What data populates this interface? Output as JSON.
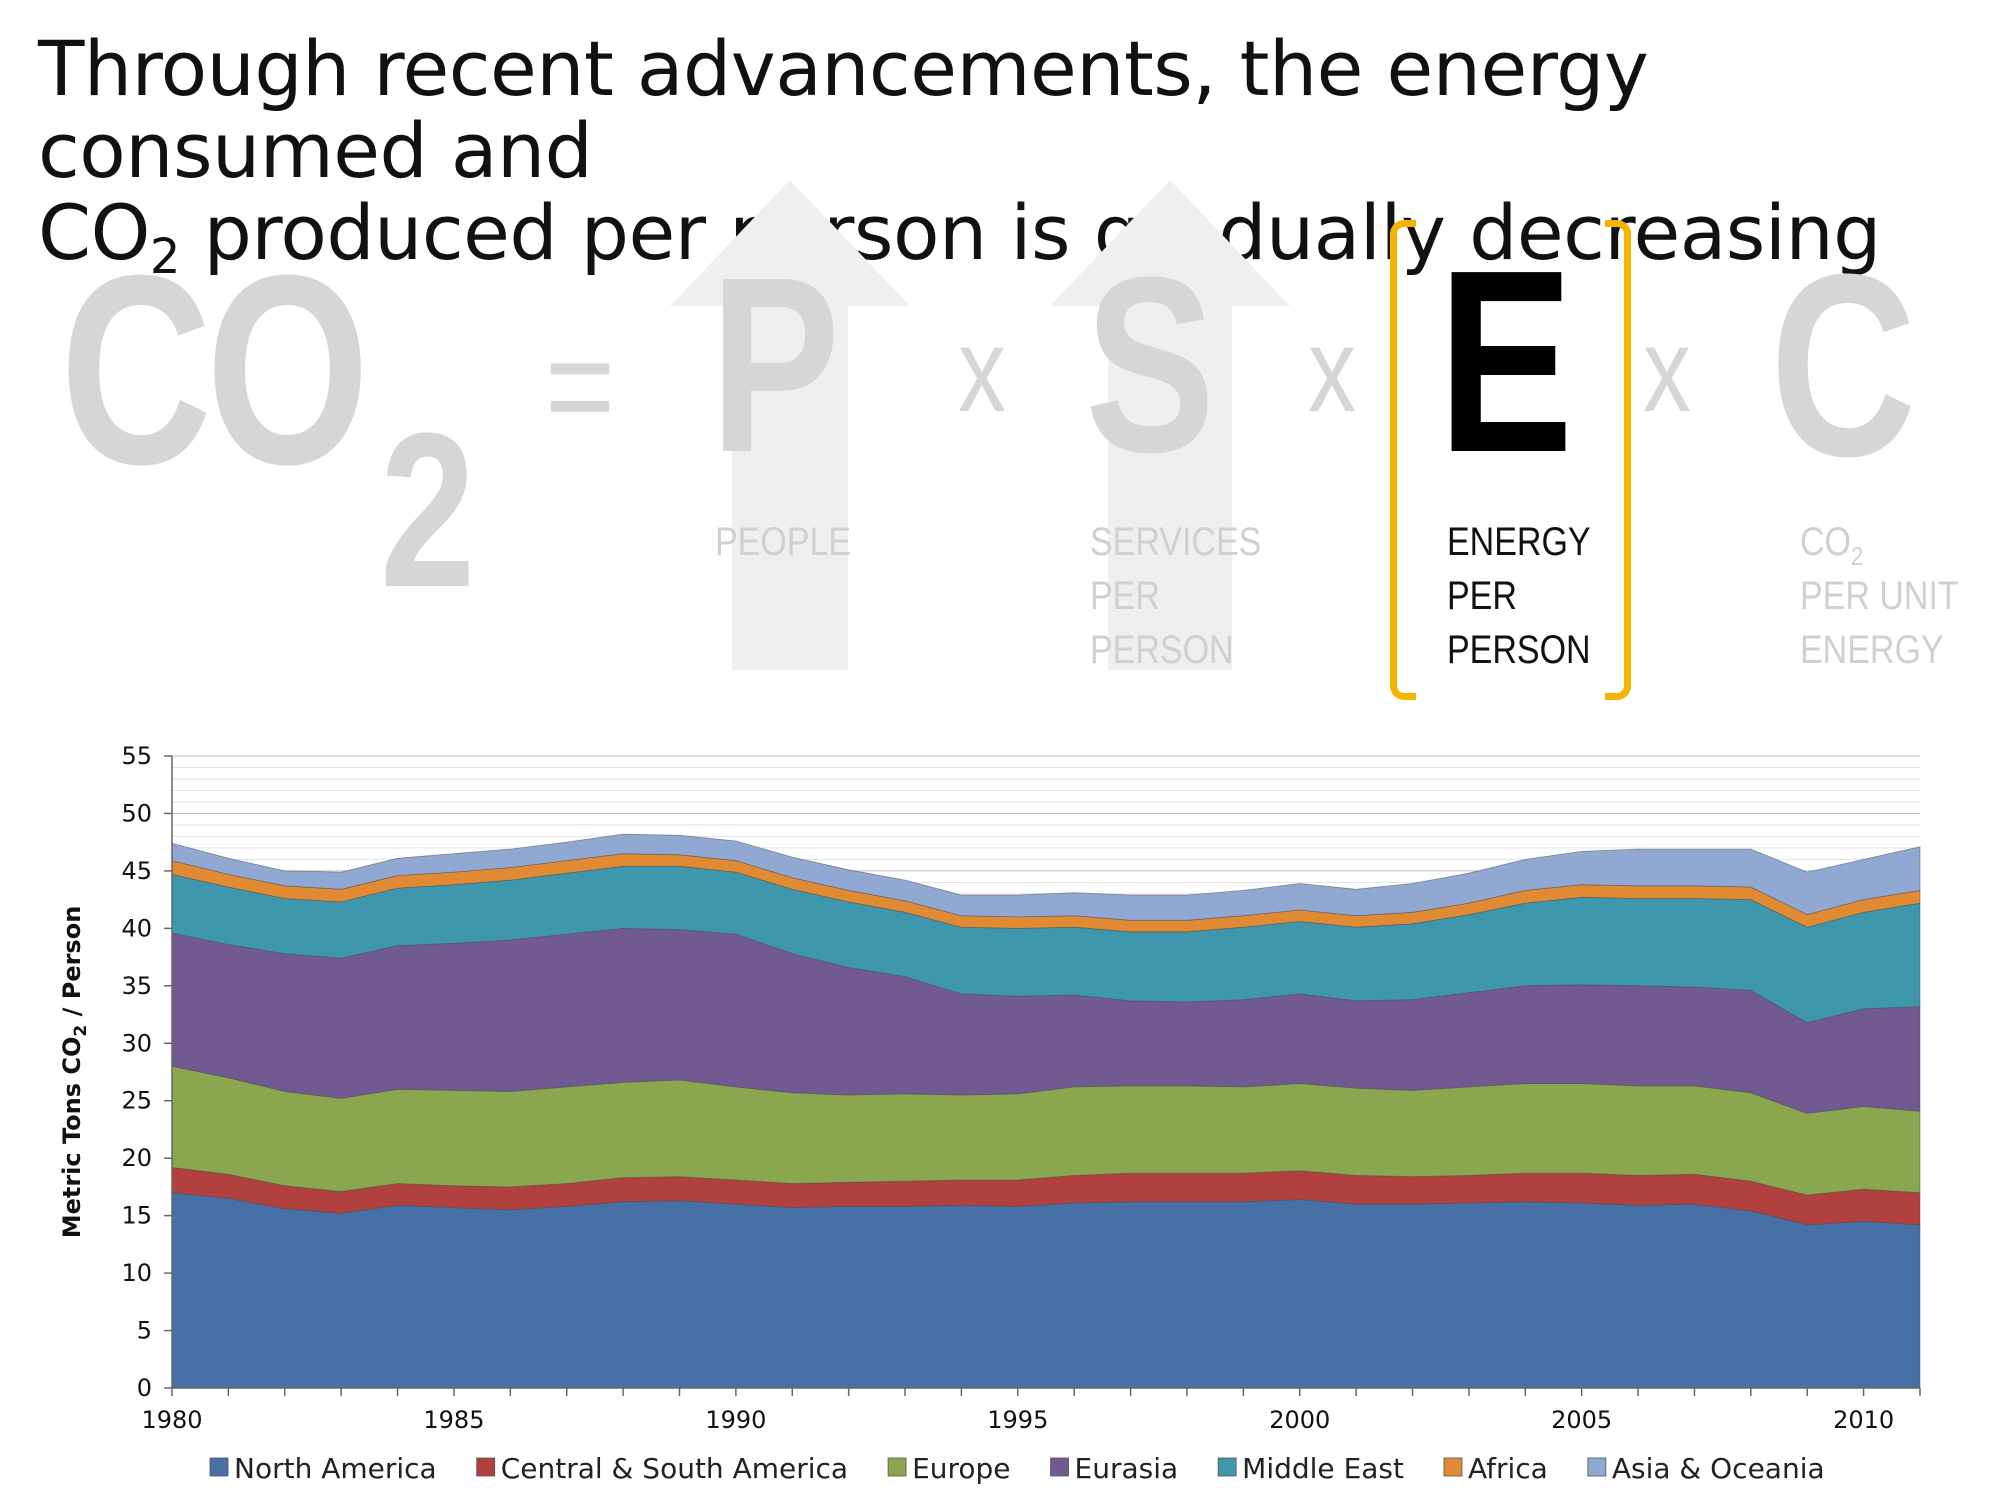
{
  "headline": {
    "line1": "Through recent advancements, the energy consumed and",
    "line2_pre": "CO",
    "line2_sub": "2",
    "line2_post": " produced per person is gradually decreasing"
  },
  "equation": {
    "co2_main": "CO",
    "co2_sub": "2",
    "equals": "=",
    "times": "x",
    "p_letter": "P",
    "p_label": [
      "PEOPLE"
    ],
    "s_letter": "S",
    "s_label": [
      "SERVICES",
      "PER",
      "PERSON"
    ],
    "e_letter": "E",
    "e_label": [
      "ENERGY",
      "PER",
      "PERSON"
    ],
    "c_letter": "C",
    "c_label_line1_pre": "CO",
    "c_label_line1_sub": "2",
    "c_label": [
      "PER UNIT",
      "ENERGY"
    ],
    "highlight_color": "#f5b400"
  },
  "chart_data": {
    "type": "area",
    "stacked": true,
    "title": "",
    "ylabel": "Metric Tons CO2 / Person",
    "ylabel_pre": "Metric Tons CO",
    "ylabel_sub": "2",
    "ylabel_post": " / Person",
    "xlabel": "",
    "ylim": [
      0,
      55
    ],
    "yticks": [
      0,
      5,
      10,
      15,
      20,
      25,
      30,
      35,
      40,
      45,
      50,
      55
    ],
    "xticks": [
      1980,
      1985,
      1990,
      1995,
      2000,
      2005,
      2010
    ],
    "x": [
      1980,
      1981,
      1982,
      1983,
      1984,
      1985,
      1986,
      1987,
      1988,
      1989,
      1990,
      1991,
      1992,
      1993,
      1994,
      1995,
      1996,
      1997,
      1998,
      1999,
      2000,
      2001,
      2002,
      2003,
      2004,
      2005,
      2006,
      2007,
      2008,
      2009,
      2010,
      2011
    ],
    "series": [
      {
        "name": "North America",
        "color": "#4670a6",
        "values": [
          17.0,
          16.5,
          15.6,
          15.2,
          15.9,
          15.7,
          15.5,
          15.8,
          16.2,
          16.3,
          16.0,
          15.7,
          15.8,
          15.8,
          15.9,
          15.8,
          16.1,
          16.2,
          16.2,
          16.2,
          16.4,
          16.0,
          16.0,
          16.1,
          16.2,
          16.1,
          15.9,
          16.0,
          15.4,
          14.2,
          14.5,
          14.2
        ]
      },
      {
        "name": "Central & South America",
        "color": "#b0413e",
        "values": [
          2.2,
          2.1,
          2.0,
          1.9,
          1.9,
          1.9,
          2.0,
          2.0,
          2.1,
          2.1,
          2.1,
          2.1,
          2.1,
          2.2,
          2.2,
          2.3,
          2.4,
          2.5,
          2.5,
          2.5,
          2.5,
          2.5,
          2.4,
          2.4,
          2.5,
          2.6,
          2.6,
          2.6,
          2.6,
          2.6,
          2.8,
          2.8
        ]
      },
      {
        "name": "Europe",
        "color": "#8aa64e",
        "values": [
          8.8,
          8.4,
          8.2,
          8.1,
          8.2,
          8.3,
          8.3,
          8.4,
          8.3,
          8.4,
          8.1,
          7.9,
          7.6,
          7.6,
          7.4,
          7.5,
          7.7,
          7.6,
          7.6,
          7.5,
          7.6,
          7.6,
          7.5,
          7.7,
          7.8,
          7.8,
          7.8,
          7.7,
          7.7,
          7.1,
          7.2,
          7.1
        ]
      },
      {
        "name": "Eurasia",
        "color": "#705a91",
        "values": [
          11.6,
          11.6,
          12.0,
          12.2,
          12.5,
          12.8,
          13.2,
          13.3,
          13.4,
          13.1,
          13.3,
          12.1,
          11.1,
          10.2,
          8.8,
          8.5,
          8.0,
          7.4,
          7.3,
          7.6,
          7.8,
          7.6,
          7.9,
          8.2,
          8.5,
          8.6,
          8.7,
          8.6,
          8.9,
          7.9,
          8.5,
          9.1
        ]
      },
      {
        "name": "Middle East",
        "color": "#3f97ae",
        "values": [
          5.1,
          5.0,
          4.8,
          4.9,
          5.0,
          5.1,
          5.2,
          5.3,
          5.4,
          5.5,
          5.4,
          5.6,
          5.7,
          5.6,
          5.8,
          5.9,
          5.9,
          6.0,
          6.1,
          6.3,
          6.3,
          6.4,
          6.6,
          6.8,
          7.2,
          7.6,
          7.6,
          7.7,
          7.9,
          8.3,
          8.4,
          9.0
        ]
      },
      {
        "name": "Africa",
        "color": "#e08a34",
        "values": [
          1.2,
          1.1,
          1.1,
          1.1,
          1.1,
          1.1,
          1.1,
          1.1,
          1.1,
          1.0,
          1.0,
          1.0,
          1.0,
          1.0,
          1.0,
          1.0,
          1.0,
          1.0,
          1.0,
          1.0,
          1.0,
          1.0,
          1.0,
          1.0,
          1.1,
          1.1,
          1.1,
          1.1,
          1.1,
          1.1,
          1.1,
          1.1
        ]
      },
      {
        "name": "Asia & Oceania",
        "color": "#90a8d2",
        "values": [
          1.5,
          1.4,
          1.3,
          1.5,
          1.5,
          1.6,
          1.6,
          1.6,
          1.7,
          1.7,
          1.7,
          1.8,
          1.8,
          1.8,
          1.8,
          1.9,
          2.0,
          2.2,
          2.2,
          2.2,
          2.3,
          2.3,
          2.5,
          2.6,
          2.7,
          2.9,
          3.2,
          3.2,
          3.3,
          3.7,
          3.5,
          3.8
        ]
      }
    ],
    "gridlines": true,
    "legend_position": "bottom"
  }
}
